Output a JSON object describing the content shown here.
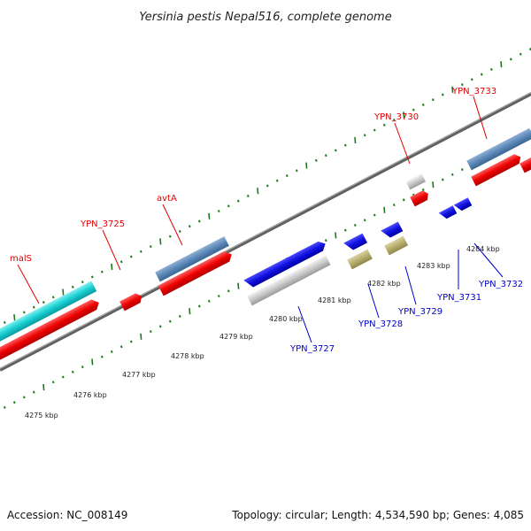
{
  "title": "Yersinia pestis Nepal516, complete genome",
  "accession": "Accession: NC_008149",
  "topology": "Topology: circular; Length: 4,534,590 bp; Genes: 4,085",
  "colors": {
    "forward_label": "#e00000",
    "reverse_label": "#0000cc",
    "tick": "#1a7a1a",
    "backbone": "#808080"
  },
  "scale_labels": [
    "4275 kbp",
    "4276 kbp",
    "4277 kbp",
    "4278 kbp",
    "4279 kbp",
    "4280 kbp",
    "4281 kbp",
    "4282 kbp",
    "4283 kbp",
    "4284 kbp"
  ],
  "top_gene_labels": [
    "malS",
    "YPN_3725",
    "avtA",
    "YPN_3730",
    "YPN_3733"
  ],
  "bottom_gene_labels": [
    "YPN_3727",
    "YPN_3728",
    "YPN_3729",
    "YPN_3731",
    "YPN_3732"
  ],
  "feature_colors": {
    "cds_forward": "red",
    "cds_reverse": "blue",
    "gene_blue": "steelblue",
    "gene_cyan": "cyan",
    "gene_grey": "silver",
    "gene_khaki": "khaki"
  }
}
